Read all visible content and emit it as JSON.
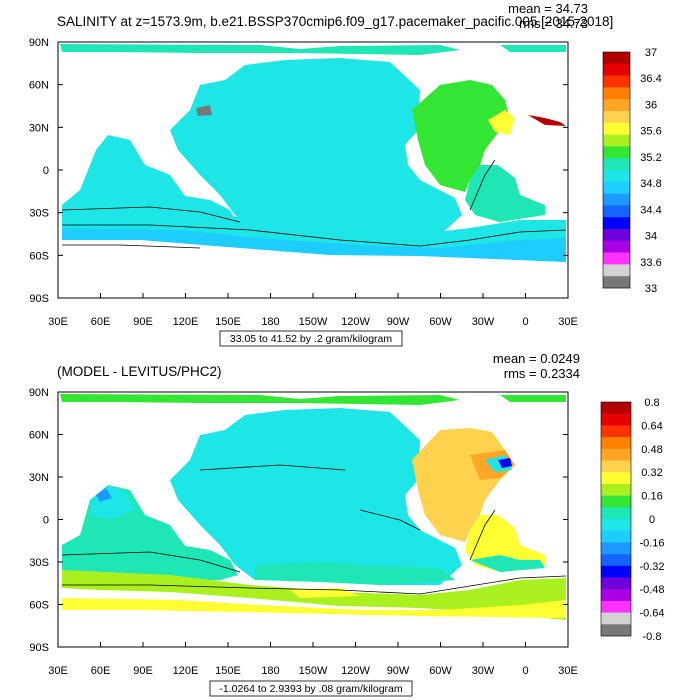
{
  "panels": [
    {
      "title": "SALINITY at z=1573.9m, b.e21.BSSP370cmip6.f09_g17.pacemaker_pacific.005 [2015-2018]",
      "mean_text": "mean = 34.73",
      "rms_text": "rms = 34.73",
      "range_text": "33.05 to 41.52 by .2 gram/kilogram"
    },
    {
      "title": "(MODEL - LEVITUS/PHC2)",
      "mean_text": "mean = 0.0249",
      "rms_text": "rms = 0.2334",
      "range_text": "-1.0264 to 2.9393 by .08 gram/kilogram"
    }
  ],
  "chart_data": [
    {
      "type": "heatmap",
      "title": "SALINITY at z=1573.9m, b.e21.BSSP370cmip6.f09_g17.pacemaker_pacific.005 [2015-2018]",
      "x_ticks": [
        "30E",
        "60E",
        "90E",
        "120E",
        "150E",
        "180",
        "150W",
        "120W",
        "90W",
        "60W",
        "30W",
        "0",
        "30E"
      ],
      "y_ticks": [
        "90N",
        "60N",
        "30N",
        "0",
        "30S",
        "60S",
        "90S"
      ],
      "colorbar": {
        "labels": [
          "37",
          "36.4",
          "36",
          "35.6",
          "35.2",
          "34.8",
          "34.4",
          "34",
          "33.6",
          "33"
        ],
        "colors": [
          "#b30000",
          "#e60000",
          "#ff3300",
          "#ff8000",
          "#ffa626",
          "#ffd24d",
          "#ffff33",
          "#aaf01e",
          "#33e633",
          "#1ee6b4",
          "#1ee6e6",
          "#1ecdff",
          "#1e99ff",
          "#1464ff",
          "#0000ff",
          "#6e00dc",
          "#aa00e6",
          "#ff33ff",
          "#d2d2d2",
          "#787878"
        ]
      },
      "mean": 34.73,
      "rms": 34.73,
      "range": [
        33.05,
        41.52
      ],
      "interval": 0.2,
      "units": "gram/kilogram"
    },
    {
      "type": "heatmap",
      "title": "(MODEL - LEVITUS/PHC2)",
      "x_ticks": [
        "30E",
        "60E",
        "90E",
        "120E",
        "150E",
        "180",
        "150W",
        "120W",
        "90W",
        "60W",
        "30W",
        "0",
        "30E"
      ],
      "y_ticks": [
        "90N",
        "60N",
        "30N",
        "0",
        "30S",
        "60S",
        "90S"
      ],
      "colorbar": {
        "labels": [
          "0.8",
          "0.64",
          "0.48",
          "0.32",
          "0.16",
          "0",
          "-0.16",
          "-0.32",
          "-0.48",
          "-0.64",
          "-0.8"
        ],
        "colors": [
          "#b30000",
          "#e60000",
          "#ff3300",
          "#ff8000",
          "#ffa626",
          "#ffd24d",
          "#ffff33",
          "#aaf01e",
          "#33e633",
          "#1ee6b4",
          "#1ee6e6",
          "#1ecdff",
          "#1e99ff",
          "#1464ff",
          "#0000ff",
          "#6e00dc",
          "#aa00e6",
          "#ff33ff",
          "#d2d2d2",
          "#787878"
        ]
      },
      "mean": 0.0249,
      "rms": 0.2334,
      "range": [
        -1.0264,
        2.9393
      ],
      "interval": 0.08,
      "units": "gram/kilogram"
    }
  ]
}
